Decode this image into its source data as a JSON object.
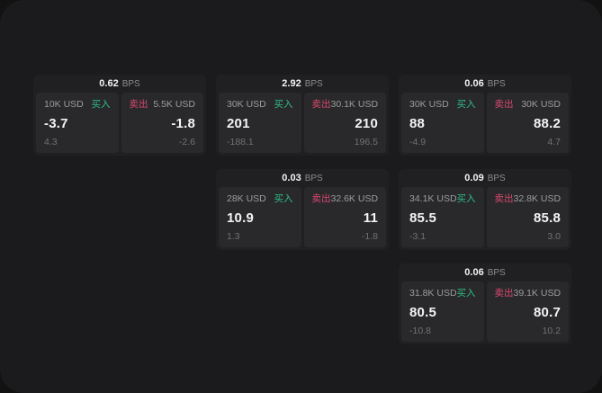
{
  "labels": {
    "buy": "买入",
    "sell": "卖出",
    "bps_suffix": "BPS"
  },
  "colors": {
    "buy": "#2ebd85",
    "sell": "#d9486e",
    "window_bg": "#1b1b1d",
    "card_bg": "#202022",
    "panel_bg": "#29292b"
  },
  "cards": [
    {
      "bps": "0.62",
      "buy": {
        "notional": "10K USD",
        "price": "-3.7",
        "delta": "4.3"
      },
      "sell": {
        "notional": "5.5K USD",
        "price": "-1.8",
        "delta": "-2.6"
      }
    },
    {
      "bps": "2.92",
      "buy": {
        "notional": "30K USD",
        "price": "201",
        "delta": "-188.1"
      },
      "sell": {
        "notional": "30.1K USD",
        "price": "210",
        "delta": "196.5"
      }
    },
    {
      "bps": "0.06",
      "buy": {
        "notional": "30K USD",
        "price": "88",
        "delta": "-4.9"
      },
      "sell": {
        "notional": "30K USD",
        "price": "88.2",
        "delta": "4.7"
      }
    },
    {
      "bps": "0.03",
      "buy": {
        "notional": "28K USD",
        "price": "10.9",
        "delta": "1.3"
      },
      "sell": {
        "notional": "32.6K USD",
        "price": "11",
        "delta": "-1.8"
      }
    },
    {
      "bps": "0.09",
      "buy": {
        "notional": "34.1K USD",
        "price": "85.5",
        "delta": "-3.1"
      },
      "sell": {
        "notional": "32.8K USD",
        "price": "85.8",
        "delta": "3.0"
      }
    },
    {
      "bps": "0.06",
      "buy": {
        "notional": "31.8K USD",
        "price": "80.5",
        "delta": "-10.8"
      },
      "sell": {
        "notional": "39.1K USD",
        "price": "80.7",
        "delta": "10.2"
      }
    }
  ]
}
